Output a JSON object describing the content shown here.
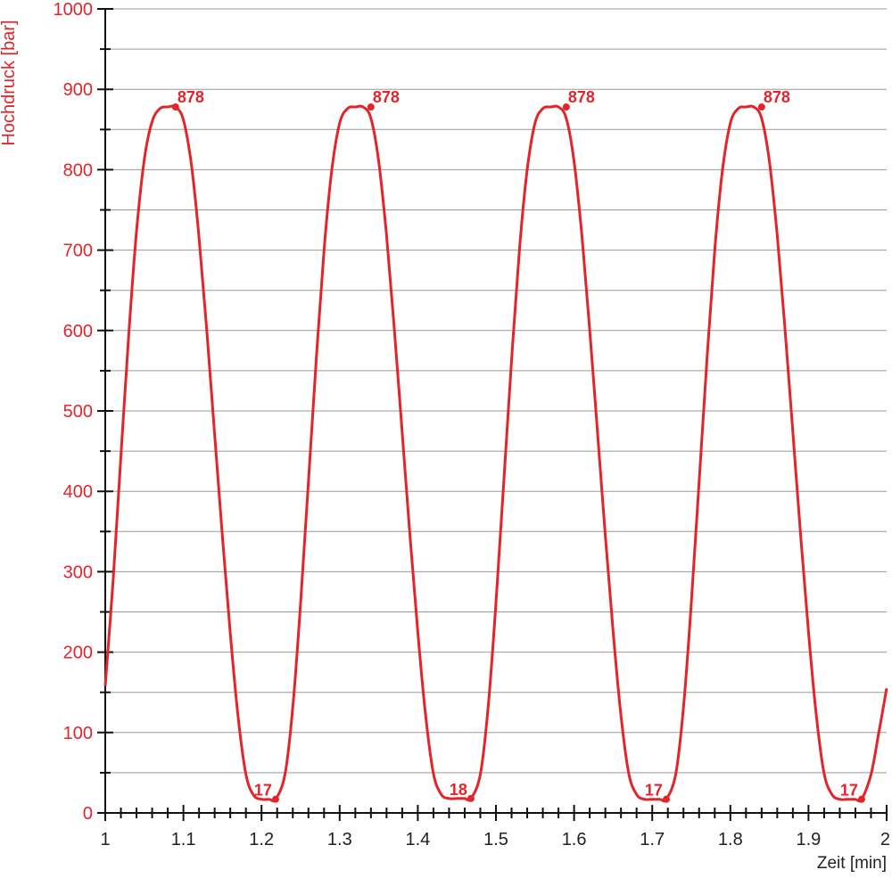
{
  "chart_data": {
    "type": "line",
    "title": "",
    "xlabel": "Zeit [min]",
    "ylabel": "Hochdruck [bar]",
    "xlim": [
      1,
      2
    ],
    "ylim": [
      0,
      1000
    ],
    "x_ticks": [
      "1",
      "1.1",
      "1.2",
      "1.3",
      "1.4",
      "1.5",
      "1.6",
      "1.7",
      "1.8",
      "1.9",
      "2"
    ],
    "y_ticks": [
      "0",
      "100",
      "200",
      "300",
      "400",
      "500",
      "600",
      "700",
      "800",
      "900",
      "1000"
    ],
    "grid": true,
    "colors": {
      "series": "#e3242b",
      "grid": "#9a9a9a",
      "axis": "#111111"
    },
    "series": [
      {
        "name": "",
        "x": [
          1.0,
          1.01,
          1.02,
          1.03,
          1.04,
          1.05,
          1.06,
          1.07,
          1.08,
          1.09,
          1.1,
          1.11,
          1.12,
          1.13,
          1.14,
          1.15,
          1.16,
          1.17,
          1.18,
          1.19,
          1.2,
          1.21,
          1.218,
          1.23,
          1.24,
          1.25,
          1.26,
          1.27,
          1.28,
          1.29,
          1.3,
          1.31,
          1.32,
          1.33,
          1.34,
          1.35,
          1.36,
          1.37,
          1.38,
          1.39,
          1.4,
          1.41,
          1.42,
          1.43,
          1.44,
          1.45,
          1.46,
          1.468,
          1.48,
          1.49,
          1.5,
          1.51,
          1.52,
          1.53,
          1.54,
          1.55,
          1.56,
          1.57,
          1.58,
          1.59,
          1.6,
          1.61,
          1.62,
          1.63,
          1.64,
          1.65,
          1.66,
          1.67,
          1.68,
          1.69,
          1.7,
          1.71,
          1.718,
          1.73,
          1.74,
          1.75,
          1.76,
          1.77,
          1.78,
          1.79,
          1.8,
          1.81,
          1.82,
          1.83,
          1.84,
          1.85,
          1.86,
          1.87,
          1.88,
          1.89,
          1.9,
          1.91,
          1.92,
          1.93,
          1.94,
          1.95,
          1.96,
          1.968,
          1.98,
          1.99,
          2.0
        ],
        "y": [
          158,
          289,
          443,
          594,
          723,
          813,
          860,
          876,
          878,
          878,
          862,
          808,
          716,
          599,
          471,
          343,
          223,
          120,
          48,
          22,
          17,
          17,
          17,
          48,
          131,
          261,
          412,
          563,
          700,
          800,
          858,
          876,
          878,
          878,
          864,
          810,
          718,
          601,
          473,
          345,
          225,
          121,
          49,
          23,
          18,
          18,
          18,
          18,
          48,
          131,
          261,
          412,
          563,
          700,
          800,
          858,
          876,
          878,
          878,
          864,
          810,
          718,
          601,
          473,
          345,
          225,
          121,
          49,
          23,
          17,
          17,
          17,
          17,
          48,
          131,
          261,
          412,
          563,
          700,
          800,
          858,
          876,
          878,
          878,
          864,
          810,
          718,
          601,
          473,
          345,
          225,
          121,
          49,
          23,
          17,
          17,
          17,
          17,
          48,
          100,
          155
        ]
      }
    ],
    "annotations": [
      {
        "x": 1.09,
        "y": 878,
        "text": "878",
        "anchor": "right"
      },
      {
        "x": 1.34,
        "y": 878,
        "text": "878",
        "anchor": "right"
      },
      {
        "x": 1.59,
        "y": 878,
        "text": "878",
        "anchor": "right"
      },
      {
        "x": 1.84,
        "y": 878,
        "text": "878",
        "anchor": "right"
      },
      {
        "x": 1.218,
        "y": 17,
        "text": "17",
        "anchor": "left"
      },
      {
        "x": 1.468,
        "y": 18,
        "text": "18",
        "anchor": "left"
      },
      {
        "x": 1.718,
        "y": 17,
        "text": "17",
        "anchor": "left"
      },
      {
        "x": 1.968,
        "y": 17,
        "text": "17",
        "anchor": "left"
      }
    ]
  }
}
